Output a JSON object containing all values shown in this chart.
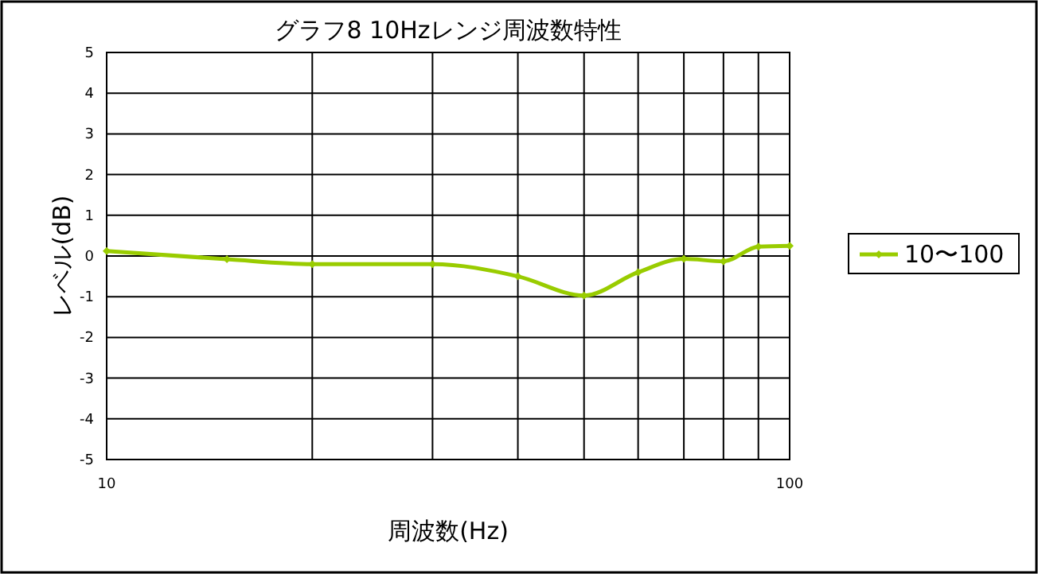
{
  "chart_data": {
    "type": "line",
    "title": "グラフ8  10Hzレンジ周波数特性",
    "xlabel": "周波数(Hz)",
    "ylabel": "レベル(dB)",
    "x": [
      10,
      15,
      20,
      30,
      40,
      50,
      60,
      70,
      80,
      90,
      100
    ],
    "series": [
      {
        "name": "10〜100",
        "color": "#99cc00",
        "values": [
          0.12,
          -0.08,
          -0.2,
          -0.2,
          -0.5,
          -0.97,
          -0.4,
          -0.07,
          -0.13,
          0.23,
          0.25
        ]
      }
    ],
    "log": "x",
    "xlim": [
      10,
      100
    ],
    "ylim": [
      -5,
      5
    ],
    "xticks": [
      10,
      {
        "value": 20,
        "label": null
      },
      {
        "value": 30,
        "label": null
      },
      {
        "value": 40,
        "label": null
      },
      {
        "value": 50,
        "label": null
      },
      {
        "value": 60,
        "label": null
      },
      {
        "value": 70,
        "label": null
      },
      {
        "value": 80,
        "label": null
      },
      {
        "value": 90,
        "label": null
      },
      100
    ],
    "yticks": [
      -5,
      -4,
      -3,
      -2,
      -1,
      0,
      1,
      2,
      3,
      4,
      5
    ],
    "grid": true,
    "legend": "right",
    "marker": "diamond",
    "line_style": "solid"
  }
}
